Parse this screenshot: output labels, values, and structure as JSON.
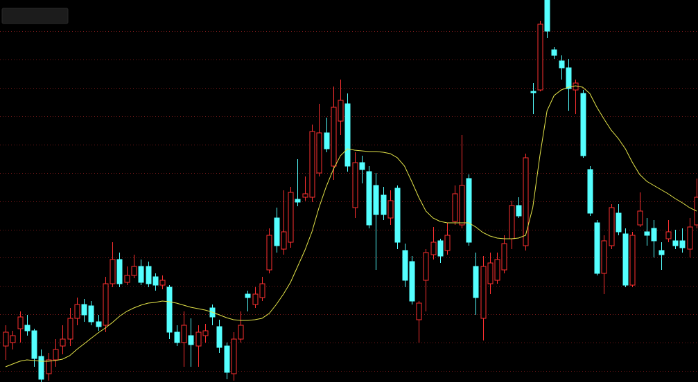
{
  "chart_data": {
    "type": "candlestick",
    "ylim": [
      0,
      552
    ],
    "yticks": [
      16,
      57,
      98,
      139,
      180,
      220,
      261,
      302,
      343,
      384,
      425,
      466,
      507
    ],
    "grid": true,
    "up_color": "#ff3030",
    "down_color": "#54ffff",
    "open": [
      52,
      57,
      77,
      82,
      74,
      37,
      12,
      32,
      52,
      62,
      92,
      112,
      110,
      87,
      82,
      142,
      177,
      144,
      154,
      167,
      167,
      152,
      140,
      137,
      72,
      57,
      67,
      52,
      67,
      107,
      80,
      52,
      12,
      62,
      127,
      112,
      122,
      162,
      237,
      192,
      202,
      264,
      267,
      267,
      302,
      360,
      312,
      377,
      402,
      252,
      317,
      304,
      284,
      270,
      237,
      280,
      190,
      174,
      90,
      147,
      184,
      204,
      190,
      232,
      227,
      294,
      167,
      92,
      142,
      147,
      162,
      207,
      255,
      197,
      420,
      422,
      552,
      480,
      464,
      454,
      422,
      417,
      307,
      230,
      157,
      197,
      244,
      214,
      140,
      227,
      217,
      222,
      190,
      207,
      204,
      204,
      192,
      227
    ],
    "high": [
      82,
      74,
      102,
      97,
      77,
      47,
      42,
      62,
      82,
      107,
      122,
      120,
      117,
      97,
      152,
      202,
      187,
      167,
      184,
      177,
      174,
      157,
      154,
      140,
      82,
      102,
      92,
      82,
      84,
      112,
      90,
      57,
      72,
      102,
      132,
      137,
      152,
      222,
      252,
      277,
      282,
      322,
      297,
      372,
      402,
      382,
      427,
      437,
      417,
      332,
      327,
      312,
      302,
      282,
      277,
      284,
      200,
      182,
      117,
      192,
      224,
      207,
      230,
      284,
      357,
      300,
      187,
      182,
      187,
      187,
      212,
      262,
      267,
      330,
      432,
      522,
      552,
      484,
      472,
      467,
      437,
      422,
      312,
      234,
      212,
      257,
      257,
      222,
      217,
      274,
      237,
      234,
      202,
      234,
      220,
      222,
      237,
      294
    ],
    "low": [
      32,
      47,
      57,
      67,
      22,
      0,
      2,
      22,
      40,
      52,
      82,
      87,
      82,
      74,
      72,
      137,
      137,
      140,
      150,
      140,
      137,
      132,
      134,
      62,
      52,
      22,
      22,
      22,
      57,
      82,
      42,
      4,
      2,
      57,
      102,
      107,
      117,
      157,
      187,
      184,
      194,
      254,
      262,
      260,
      297,
      332,
      292,
      357,
      304,
      237,
      287,
      222,
      162,
      234,
      227,
      192,
      137,
      112,
      57,
      102,
      177,
      172,
      184,
      227,
      222,
      197,
      97,
      60,
      127,
      142,
      157,
      192,
      237,
      190,
      387,
      420,
      497,
      467,
      437,
      392,
      387,
      324,
      240,
      154,
      127,
      192,
      212,
      137,
      137,
      224,
      197,
      180,
      162,
      202,
      192,
      187,
      180,
      222
    ],
    "close": [
      72,
      67,
      94,
      74,
      34,
      4,
      32,
      47,
      62,
      92,
      112,
      97,
      87,
      80,
      142,
      177,
      142,
      154,
      167,
      144,
      142,
      140,
      147,
      72,
      57,
      82,
      54,
      72,
      74,
      94,
      50,
      14,
      62,
      82,
      122,
      127,
      142,
      212,
      197,
      217,
      274,
      260,
      272,
      362,
      360,
      337,
      397,
      407,
      312,
      317,
      307,
      227,
      242,
      242,
      262,
      202,
      147,
      117,
      114,
      187,
      202,
      182,
      212,
      272,
      284,
      202,
      122,
      167,
      172,
      177,
      200,
      255,
      240,
      324,
      418,
      517,
      507,
      472,
      454,
      424,
      432,
      327,
      244,
      157,
      204,
      252,
      217,
      140,
      212,
      247,
      212,
      204,
      184,
      217,
      197,
      194,
      224,
      267
    ],
    "ma": {
      "color": "#e6e64a",
      "values": [
        22,
        26,
        30,
        32,
        31,
        30,
        30,
        31,
        33,
        38,
        47,
        55,
        63,
        71,
        78,
        86,
        95,
        102,
        107,
        111,
        114,
        115,
        117,
        116,
        114,
        111,
        108,
        106,
        104,
        101,
        97,
        93,
        90,
        89,
        89,
        90,
        92,
        99,
        112,
        127,
        144,
        167,
        190,
        217,
        252,
        282,
        307,
        327,
        337,
        335,
        334,
        333,
        333,
        332,
        330,
        324,
        312,
        290,
        267,
        247,
        237,
        232,
        230,
        230,
        230,
        230,
        224,
        216,
        211,
        208,
        207,
        207,
        208,
        212,
        252,
        327,
        392,
        414,
        422,
        426,
        428,
        426,
        417,
        397,
        380,
        364,
        352,
        337,
        317,
        300,
        290,
        284,
        278,
        272,
        265,
        259,
        252,
        247
      ]
    }
  }
}
